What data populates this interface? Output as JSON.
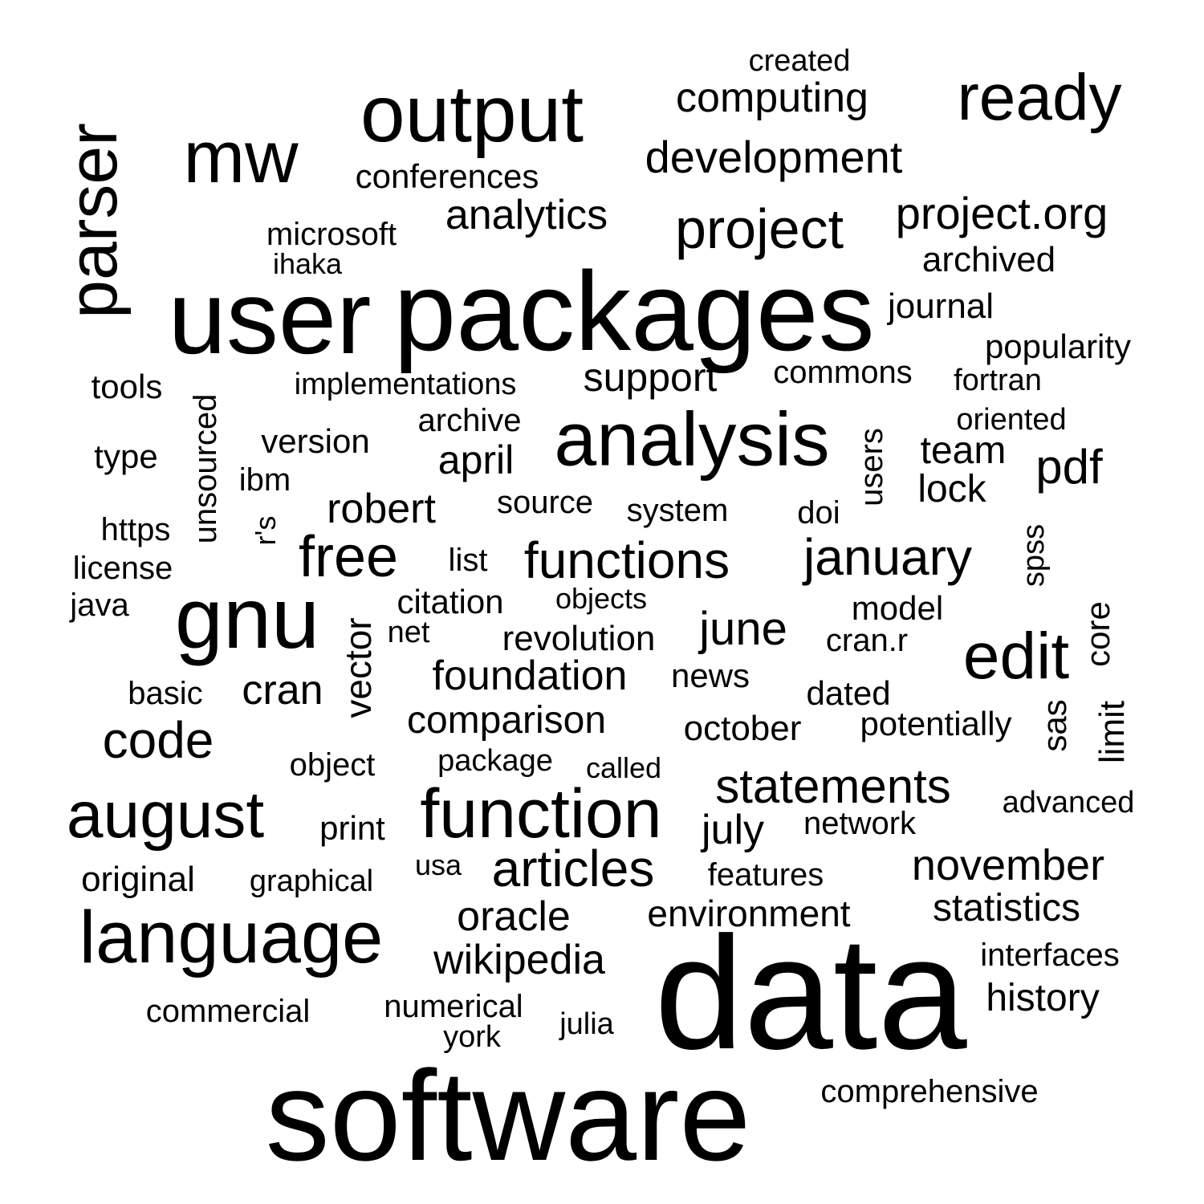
{
  "colors": {
    "background": "#ffffff",
    "text": "#000000"
  },
  "words": [
    {
      "text": "data",
      "size": 1
    },
    {
      "text": "software",
      "size": 0.93
    },
    {
      "text": "packages",
      "size": 0.82
    },
    {
      "text": "user",
      "size": 0.74
    },
    {
      "text": "output",
      "size": 0.54
    },
    {
      "text": "analysis",
      "size": 0.51
    },
    {
      "text": "gnu",
      "size": 0.55
    },
    {
      "text": "language",
      "size": 0.5
    },
    {
      "text": "function",
      "size": 0.46
    },
    {
      "text": "parser",
      "size": 0.45
    },
    {
      "text": "mw",
      "size": 0.47
    },
    {
      "text": "ready",
      "size": 0.42
    },
    {
      "text": "august",
      "size": 0.42
    },
    {
      "text": "edit",
      "size": 0.42
    },
    {
      "text": "project",
      "size": 0.36
    },
    {
      "text": "free",
      "size": 0.36
    },
    {
      "text": "functions",
      "size": 0.32
    },
    {
      "text": "january",
      "size": 0.32
    },
    {
      "text": "articles",
      "size": 0.32
    },
    {
      "text": "code",
      "size": 0.32
    },
    {
      "text": "statements",
      "size": 0.3
    },
    {
      "text": "development",
      "size": 0.28
    },
    {
      "text": "project.org",
      "size": 0.28
    },
    {
      "text": "computing",
      "size": 0.26
    },
    {
      "text": "analytics",
      "size": 0.26
    },
    {
      "text": "wikipedia",
      "size": 0.26
    },
    {
      "text": "pdf",
      "size": 0.28
    },
    {
      "text": "june",
      "size": 0.28
    },
    {
      "text": "november",
      "size": 0.26
    },
    {
      "text": "foundation",
      "size": 0.26
    },
    {
      "text": "robert",
      "size": 0.26
    },
    {
      "text": "cran",
      "size": 0.26
    },
    {
      "text": "support",
      "size": 0.24
    },
    {
      "text": "april",
      "size": 0.24
    },
    {
      "text": "comparison",
      "size": 0.24
    },
    {
      "text": "environment",
      "size": 0.23
    },
    {
      "text": "oracle",
      "size": 0.24
    },
    {
      "text": "statistics",
      "size": 0.23
    },
    {
      "text": "history",
      "size": 0.23
    },
    {
      "text": "july",
      "size": 0.23
    },
    {
      "text": "team",
      "size": 0.23
    },
    {
      "text": "lock",
      "size": 0.23
    },
    {
      "text": "revolution",
      "size": 0.22
    },
    {
      "text": "vector",
      "size": 0.22
    },
    {
      "text": "archived",
      "size": 0.21
    },
    {
      "text": "journal",
      "size": 0.21
    },
    {
      "text": "popularity",
      "size": 0.2
    },
    {
      "text": "comprehensive",
      "size": 0.19
    },
    {
      "text": "version",
      "size": 0.2
    },
    {
      "text": "type",
      "size": 0.2
    },
    {
      "text": "tools",
      "size": 0.2
    },
    {
      "text": "original",
      "size": 0.2
    },
    {
      "text": "commercial",
      "size": 0.19
    },
    {
      "text": "october",
      "size": 0.2
    },
    {
      "text": "potentially",
      "size": 0.19
    },
    {
      "text": "object",
      "size": 0.19
    },
    {
      "text": "print",
      "size": 0.19
    },
    {
      "text": "network",
      "size": 0.19
    },
    {
      "text": "dated",
      "size": 0.19
    },
    {
      "text": "model",
      "size": 0.19
    },
    {
      "text": "news",
      "size": 0.19
    },
    {
      "text": "citation",
      "size": 0.19
    },
    {
      "text": "numerical",
      "size": 0.18
    },
    {
      "text": "features",
      "size": 0.18
    },
    {
      "text": "https",
      "size": 0.18
    },
    {
      "text": "limit",
      "size": 0.19
    },
    {
      "text": "sas",
      "size": 0.18
    },
    {
      "text": "core",
      "size": 0.18
    },
    {
      "text": "unsourced",
      "size": 0.18
    },
    {
      "text": "users",
      "size": 0.18
    },
    {
      "text": "conferences",
      "size": 0.18
    },
    {
      "text": "system",
      "size": 0.17
    },
    {
      "text": "archive",
      "size": 0.17
    },
    {
      "text": "commons",
      "size": 0.17
    },
    {
      "text": "source",
      "size": 0.17
    },
    {
      "text": "basic",
      "size": 0.17
    },
    {
      "text": "doi",
      "size": 0.17
    },
    {
      "text": "cran.r",
      "size": 0.17
    },
    {
      "text": "interfaces",
      "size": 0.17
    },
    {
      "text": "implementations",
      "size": 0.16
    },
    {
      "text": "microsoft",
      "size": 0.17
    },
    {
      "text": "ibm",
      "size": 0.17
    },
    {
      "text": "license",
      "size": 0.17
    },
    {
      "text": "java",
      "size": 0.17
    },
    {
      "text": "list",
      "size": 0.17
    },
    {
      "text": "graphical",
      "size": 0.16
    },
    {
      "text": "package",
      "size": 0.16
    },
    {
      "text": "advanced",
      "size": 0.16
    },
    {
      "text": "julia",
      "size": 0.16
    },
    {
      "text": "york",
      "size": 0.16
    },
    {
      "text": "spss",
      "size": 0.16
    },
    {
      "text": "fortran",
      "size": 0.16
    },
    {
      "text": "oriented",
      "size": 0.16
    },
    {
      "text": "net",
      "size": 0.16
    },
    {
      "text": "usa",
      "size": 0.15
    },
    {
      "text": "called",
      "size": 0.15
    },
    {
      "text": "objects",
      "size": 0.15
    },
    {
      "text": "ihaka",
      "size": 0.15
    },
    {
      "text": "created",
      "size": 0.15
    },
    {
      "text": "r's",
      "size": 0.15
    }
  ]
}
